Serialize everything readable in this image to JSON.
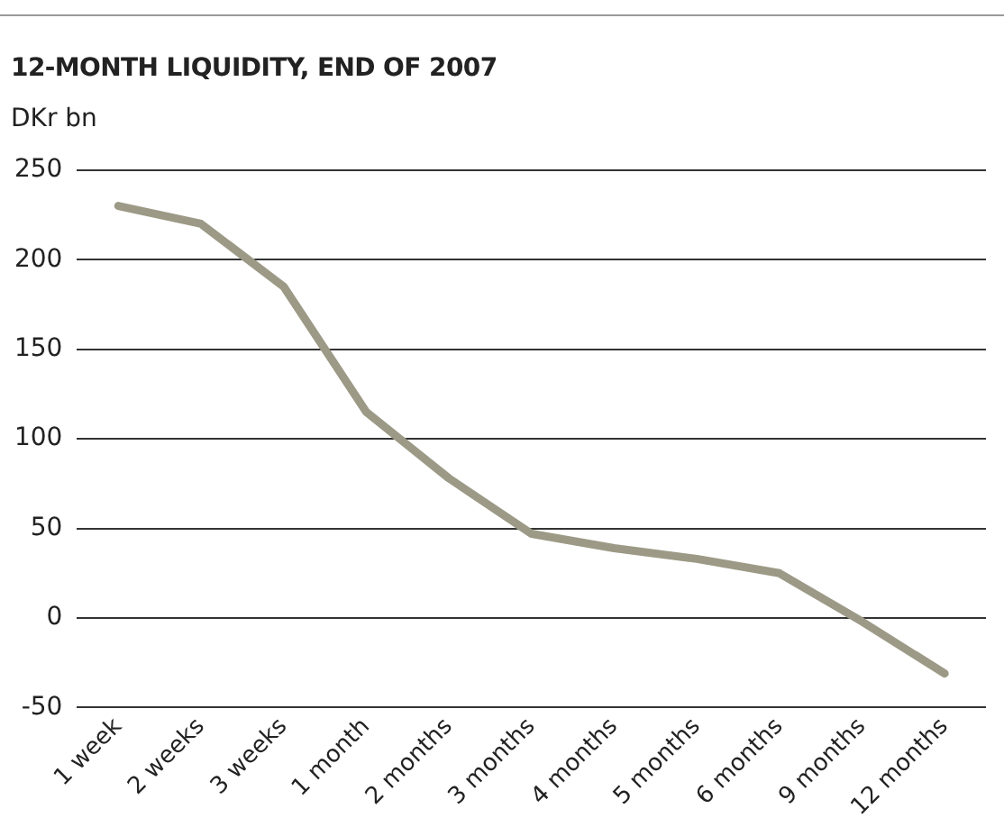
{
  "chart_data": {
    "type": "line",
    "title": "12-MONTH LIQUIDITY, END OF 2007",
    "ylabel": "DKr bn",
    "categories": [
      "1 week",
      "2 weeks",
      "3 weeks",
      "1 month",
      "2 months",
      "3 months",
      "4 months",
      "5 months",
      "6 months",
      "9 months",
      "12 months"
    ],
    "series": [
      {
        "color": "#9c9a86",
        "values": [
          230,
          220,
          185,
          115,
          78,
          47,
          39,
          33,
          25,
          -2,
          -31
        ]
      }
    ],
    "ylim": [
      -50,
      250
    ],
    "yticks": [
      -50,
      0,
      50,
      100,
      150,
      200,
      250
    ],
    "grid": "y",
    "legend": false,
    "marker": "none",
    "line_style": "solid"
  }
}
